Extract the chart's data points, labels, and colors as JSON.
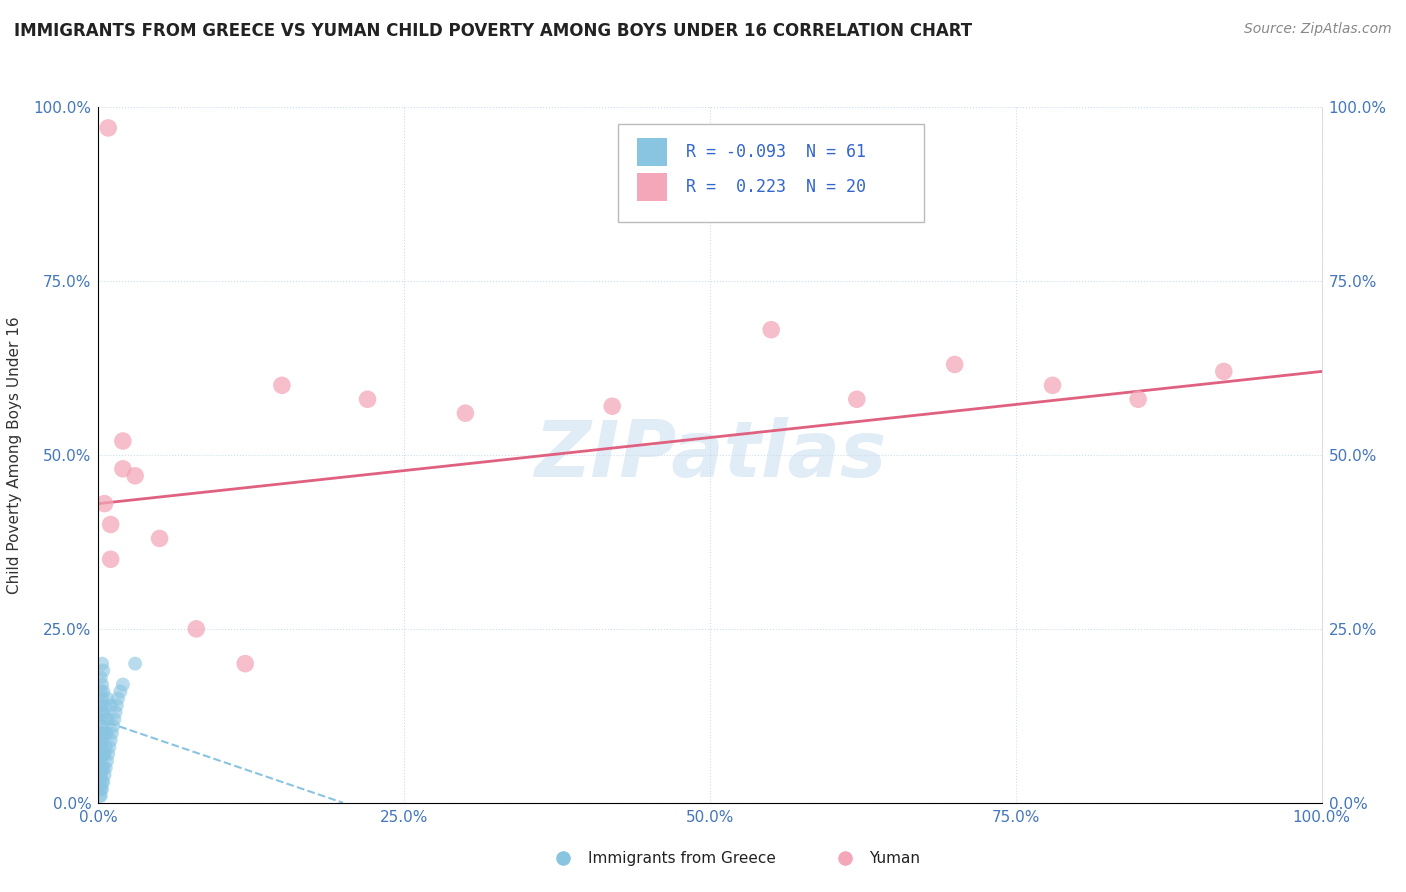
{
  "title": "IMMIGRANTS FROM GREECE VS YUMAN CHILD POVERTY AMONG BOYS UNDER 16 CORRELATION CHART",
  "source": "Source: ZipAtlas.com",
  "ylabel": "Child Poverty Among Boys Under 16",
  "xlim": [
    0,
    1.0
  ],
  "ylim": [
    0,
    1.0
  ],
  "xticks": [
    0.0,
    0.25,
    0.5,
    0.75,
    1.0
  ],
  "yticks": [
    0.0,
    0.25,
    0.5,
    0.75,
    1.0
  ],
  "left_ytick_labels": [
    "0.0%",
    "25.0%",
    "50.0%",
    "75.0%",
    "100.0%"
  ],
  "right_ytick_labels": [
    "100.0%",
    "75.0%",
    "50.0%",
    "25.0%",
    "0.0%"
  ],
  "xtick_labels": [
    "0.0%",
    "25.0%",
    "50.0%",
    "75.0%",
    "100.0%"
  ],
  "blue_R": -0.093,
  "blue_N": 61,
  "pink_R": 0.223,
  "pink_N": 20,
  "blue_color": "#89c4e1",
  "pink_color": "#f4a7b9",
  "blue_trend_color": "#89c4e1",
  "pink_trend_color": "#e06080",
  "watermark": "ZIPatlas",
  "legend_label_blue": "Immigrants from Greece",
  "legend_label_pink": "Yuman",
  "blue_x": [
    0.001,
    0.001,
    0.001,
    0.001,
    0.001,
    0.001,
    0.001,
    0.001,
    0.001,
    0.001,
    0.002,
    0.002,
    0.002,
    0.002,
    0.002,
    0.002,
    0.002,
    0.002,
    0.002,
    0.002,
    0.003,
    0.003,
    0.003,
    0.003,
    0.003,
    0.003,
    0.003,
    0.003,
    0.003,
    0.003,
    0.004,
    0.004,
    0.004,
    0.004,
    0.004,
    0.004,
    0.004,
    0.005,
    0.005,
    0.005,
    0.005,
    0.006,
    0.006,
    0.006,
    0.007,
    0.007,
    0.007,
    0.008,
    0.008,
    0.009,
    0.01,
    0.01,
    0.011,
    0.012,
    0.013,
    0.014,
    0.015,
    0.016,
    0.018,
    0.02,
    0.03
  ],
  "blue_y": [
    0.01,
    0.02,
    0.03,
    0.04,
    0.05,
    0.06,
    0.07,
    0.08,
    0.09,
    0.1,
    0.01,
    0.02,
    0.04,
    0.06,
    0.08,
    0.1,
    0.12,
    0.14,
    0.16,
    0.18,
    0.02,
    0.03,
    0.05,
    0.07,
    0.09,
    0.11,
    0.13,
    0.15,
    0.17,
    0.2,
    0.03,
    0.05,
    0.07,
    0.1,
    0.13,
    0.16,
    0.19,
    0.04,
    0.07,
    0.1,
    0.14,
    0.05,
    0.08,
    0.12,
    0.06,
    0.1,
    0.15,
    0.07,
    0.12,
    0.08,
    0.09,
    0.14,
    0.1,
    0.11,
    0.12,
    0.13,
    0.14,
    0.15,
    0.16,
    0.17,
    0.2
  ],
  "pink_x": [
    0.005,
    0.008,
    0.01,
    0.01,
    0.02,
    0.02,
    0.03,
    0.05,
    0.08,
    0.12,
    0.15,
    0.22,
    0.3,
    0.42,
    0.55,
    0.62,
    0.7,
    0.78,
    0.85,
    0.92
  ],
  "pink_y": [
    0.43,
    0.97,
    0.35,
    0.4,
    0.48,
    0.52,
    0.47,
    0.38,
    0.25,
    0.2,
    0.6,
    0.58,
    0.56,
    0.57,
    0.68,
    0.58,
    0.63,
    0.6,
    0.58,
    0.62
  ],
  "pink_trend_start_y": 0.43,
  "pink_trend_end_y": 0.62,
  "blue_trend_start_y": 0.12,
  "blue_trend_end_y": 0.0,
  "blue_trend_end_x": 0.2
}
